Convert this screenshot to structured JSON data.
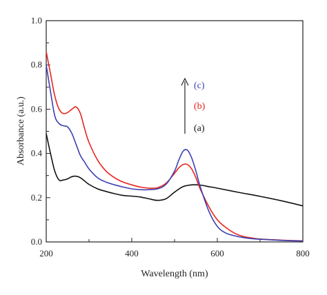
{
  "chart_data": {
    "type": "line",
    "xlabel": "Wavelength (nm)",
    "ylabel": "Absorbance (a.u.)",
    "xlim": [
      200,
      800
    ],
    "ylim": [
      0.0,
      1.0
    ],
    "x_ticks": [
      "200",
      "400",
      "600",
      "800"
    ],
    "y_ticks": [
      "0.0",
      "0.2",
      "0.4",
      "0.6",
      "0.8",
      "1.0"
    ],
    "grid": false,
    "legend_arrow": true,
    "series": [
      {
        "name": "(a)",
        "color": "#111111",
        "x": [
          200,
          210,
          220,
          230,
          240,
          250,
          260,
          270,
          280,
          290,
          300,
          320,
          340,
          360,
          380,
          400,
          420,
          440,
          460,
          480,
          500,
          520,
          540,
          560,
          580,
          600,
          650,
          700,
          750,
          800
        ],
        "y": [
          0.49,
          0.4,
          0.32,
          0.28,
          0.28,
          0.285,
          0.295,
          0.297,
          0.29,
          0.275,
          0.26,
          0.24,
          0.228,
          0.218,
          0.21,
          0.207,
          0.203,
          0.195,
          0.188,
          0.195,
          0.225,
          0.25,
          0.258,
          0.257,
          0.25,
          0.243,
          0.224,
          0.206,
          0.186,
          0.163
        ]
      },
      {
        "name": "(b)",
        "color": "#e8221c",
        "x": [
          200,
          210,
          220,
          230,
          240,
          250,
          260,
          270,
          280,
          290,
          300,
          320,
          340,
          360,
          380,
          400,
          420,
          440,
          460,
          480,
          500,
          510,
          520,
          530,
          540,
          550,
          560,
          580,
          600,
          620,
          640,
          660,
          680,
          700,
          750,
          800
        ],
        "y": [
          0.86,
          0.76,
          0.66,
          0.6,
          0.58,
          0.585,
          0.6,
          0.61,
          0.58,
          0.51,
          0.45,
          0.37,
          0.32,
          0.29,
          0.27,
          0.258,
          0.248,
          0.243,
          0.245,
          0.265,
          0.31,
          0.335,
          0.35,
          0.35,
          0.33,
          0.29,
          0.24,
          0.16,
          0.1,
          0.065,
          0.04,
          0.025,
          0.018,
          0.013,
          0.008,
          0.005
        ]
      },
      {
        "name": "(c)",
        "color": "#3a3fb0",
        "x": [
          200,
          210,
          220,
          230,
          240,
          250,
          260,
          270,
          280,
          290,
          300,
          320,
          340,
          360,
          380,
          400,
          420,
          440,
          460,
          480,
          500,
          510,
          520,
          530,
          540,
          550,
          560,
          580,
          600,
          620,
          640,
          660,
          680,
          700,
          750,
          800
        ],
        "y": [
          0.8,
          0.68,
          0.57,
          0.535,
          0.525,
          0.52,
          0.49,
          0.44,
          0.39,
          0.36,
          0.33,
          0.29,
          0.27,
          0.258,
          0.248,
          0.24,
          0.236,
          0.236,
          0.24,
          0.26,
          0.32,
          0.37,
          0.41,
          0.415,
          0.38,
          0.32,
          0.25,
          0.14,
          0.07,
          0.04,
          0.028,
          0.02,
          0.015,
          0.012,
          0.007,
          0.004
        ]
      }
    ]
  }
}
